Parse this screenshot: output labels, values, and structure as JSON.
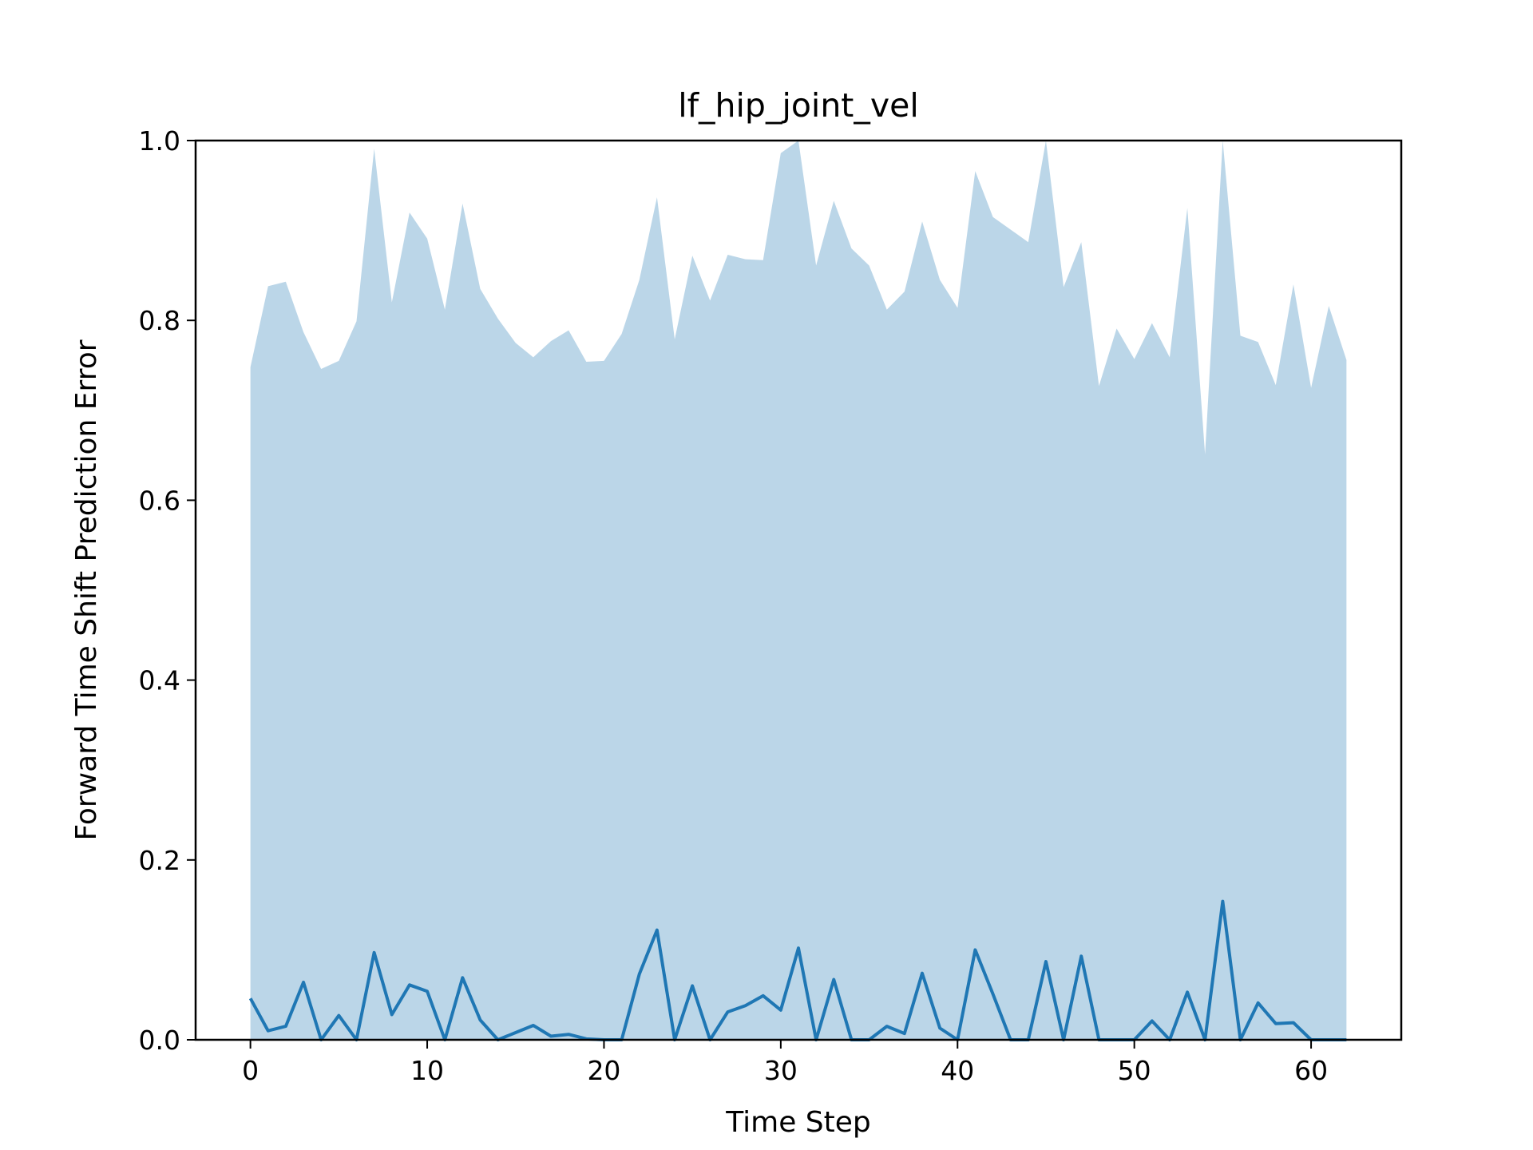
{
  "chart_data": {
    "type": "area",
    "title": "lf_hip_joint_vel",
    "xlabel": "Time Step",
    "ylabel": "Forward Time Shift Prediction Error",
    "xlim": [
      -3.1,
      65.1
    ],
    "ylim": [
      0.0,
      1.0
    ],
    "xticks": [
      0,
      10,
      20,
      30,
      40,
      50,
      60
    ],
    "yticks": [
      0.0,
      0.2,
      0.4,
      0.6,
      0.8,
      1.0
    ],
    "xtick_labels": [
      "0",
      "10",
      "20",
      "30",
      "40",
      "50",
      "60"
    ],
    "ytick_labels": [
      "0.0",
      "0.2",
      "0.4",
      "0.6",
      "0.8",
      "1.0"
    ],
    "grid": false,
    "legend": "none",
    "colors": {
      "line": "#1f77b4",
      "band": "#1f77b4",
      "band_opacity": 0.3
    },
    "x": [
      0,
      1,
      2,
      3,
      4,
      5,
      6,
      7,
      8,
      9,
      10,
      11,
      12,
      13,
      14,
      15,
      16,
      17,
      18,
      19,
      20,
      21,
      22,
      23,
      24,
      25,
      26,
      27,
      28,
      29,
      30,
      31,
      32,
      33,
      34,
      35,
      36,
      37,
      38,
      39,
      40,
      41,
      42,
      43,
      44,
      45,
      46,
      47,
      48,
      49,
      50,
      51,
      52,
      53,
      54,
      55,
      56,
      57,
      58,
      59,
      60,
      61,
      62
    ],
    "series": [
      {
        "values": [
          0.046,
          0.01,
          0.015,
          0.064,
          0,
          0.027,
          0,
          0.097,
          0.028,
          0.061,
          0.054,
          0,
          0.069,
          0.022,
          0,
          0.008,
          0.016,
          0.004,
          0.006,
          0.001,
          0,
          0,
          0.073,
          0.122,
          0,
          0.06,
          0,
          0.031,
          0.038,
          0.049,
          0.033,
          0.102,
          0,
          0.067,
          0,
          0,
          0.015,
          0.007,
          0.074,
          0.013,
          0,
          0.1,
          0.051,
          0,
          0,
          0.087,
          0,
          0.093,
          0,
          0,
          0,
          0.021,
          0,
          0.053,
          0,
          0.154,
          0,
          0.041,
          0.018,
          0.019,
          0,
          0,
          0
        ]
      }
    ],
    "band": {
      "lower": [
        0,
        0,
        0,
        0,
        0,
        0,
        0,
        0,
        0,
        0,
        0,
        0,
        0,
        0,
        0,
        0,
        0,
        0,
        0,
        0,
        0,
        0,
        0,
        0,
        0,
        0,
        0,
        0,
        0,
        0,
        0,
        0,
        0,
        0,
        0,
        0,
        0,
        0,
        0,
        0,
        0,
        0,
        0,
        0,
        0,
        0,
        0,
        0,
        0,
        0,
        0,
        0,
        0,
        0,
        0,
        0,
        0,
        0,
        0,
        0,
        0,
        0,
        0
      ],
      "upper": [
        0.748,
        0.838,
        0.843,
        0.787,
        0.746,
        0.755,
        0.799,
        0.991,
        0.82,
        0.92,
        0.891,
        0.812,
        0.93,
        0.835,
        0.802,
        0.775,
        0.759,
        0.777,
        0.789,
        0.754,
        0.755,
        0.785,
        0.845,
        0.937,
        0.779,
        0.872,
        0.822,
        0.873,
        0.868,
        0.867,
        0.986,
        1.0,
        0.861,
        0.933,
        0.88,
        0.861,
        0.812,
        0.832,
        0.91,
        0.845,
        0.814,
        0.966,
        0.915,
        0.901,
        0.887,
        1.0,
        0.837,
        0.887,
        0.727,
        0.791,
        0.757,
        0.797,
        0.759,
        0.925,
        0.651,
        1.0,
        0.783,
        0.776,
        0.728,
        0.84,
        0.725,
        0.816,
        0.756
      ]
    }
  }
}
